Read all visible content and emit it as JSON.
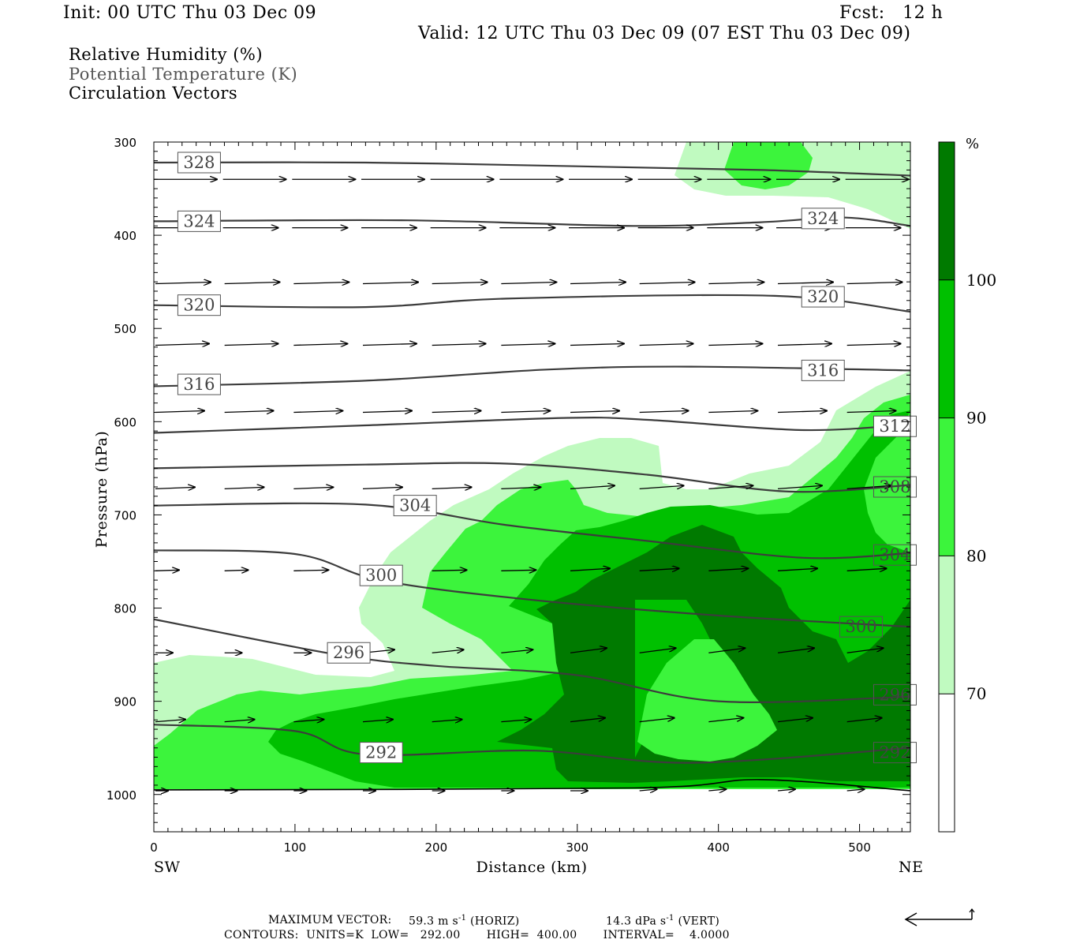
{
  "header": {
    "init": "Init: 00 UTC Thu 03 Dec 09",
    "fcst": "Fcst:   12 h",
    "valid": "Valid: 12 UTC Thu 03 Dec 09 (07 EST Thu 03 Dec 09)"
  },
  "legend": {
    "line1": "Relative Humidity (%)",
    "line2": "Potential Temperature (K)",
    "line3": "Circulation Vectors"
  },
  "footer": {
    "max_vector_label": "MAXIMUM VECTOR:",
    "max_vector_horiz": "59.3 m s",
    "horiz_tag": "(HORIZ)",
    "max_vector_vert": "14.3 dPa s",
    "vert_tag": "(VERT)",
    "contours": "CONTOURS:  UNITS=K  LOW=   292.00       HIGH=  400.00       INTERVAL=    4.0000",
    "exp": "-1"
  },
  "colors": {
    "rh_70_80": "#c0fac0",
    "rh_80_90": "#3cf43c",
    "rh_90_100": "#00c000",
    "rh_100_plus": "#007a00",
    "theta_line": "#3c3c3c"
  },
  "chart_data": {
    "type": "contour-cross-section",
    "xlabel": "Distance (km)",
    "ylabel": "Pressure (hPa)",
    "x_ticks": [
      "0",
      "100",
      "200",
      "300",
      "400",
      "500"
    ],
    "y_ticks": [
      "300",
      "400",
      "500",
      "600",
      "700",
      "800",
      "900",
      "1000"
    ],
    "xlim": [
      0,
      536
    ],
    "ylim": [
      1040,
      300
    ],
    "x_end_labels": {
      "left": "SW",
      "right": "NE"
    },
    "colorbar": {
      "unit": "%",
      "levels": [
        "70",
        "80",
        "90",
        "100"
      ],
      "colors": [
        "#ffffff",
        "#c0fac0",
        "#3cf43c",
        "#00c000",
        "#007a00"
      ]
    },
    "theta_contours": [
      {
        "value": 328,
        "label": "328",
        "points": [
          [
            0,
            322
          ],
          [
            150,
            322
          ],
          [
            300,
            326
          ],
          [
            430,
            330
          ],
          [
            536,
            336
          ]
        ],
        "labels": [
          [
            17,
            322
          ]
        ]
      },
      {
        "value": 324,
        "label": "324",
        "points": [
          [
            0,
            385
          ],
          [
            180,
            384
          ],
          [
            340,
            390
          ],
          [
            430,
            386
          ],
          [
            490,
            381
          ],
          [
            536,
            390
          ]
        ],
        "labels": [
          [
            17,
            385
          ],
          [
            459,
            382
          ]
        ]
      },
      {
        "value": 320,
        "label": "320",
        "points": [
          [
            0,
            475
          ],
          [
            150,
            477
          ],
          [
            250,
            468
          ],
          [
            440,
            465
          ],
          [
            536,
            482
          ]
        ],
        "labels": [
          [
            17,
            475
          ],
          [
            459,
            466
          ]
        ]
      },
      {
        "value": 316,
        "label": "316",
        "points": [
          [
            0,
            562
          ],
          [
            150,
            556
          ],
          [
            280,
            544
          ],
          [
            380,
            541
          ],
          [
            536,
            545
          ]
        ],
        "labels": [
          [
            17,
            560
          ],
          [
            459,
            545
          ]
        ]
      },
      {
        "value": 312,
        "label": "312",
        "points": [
          [
            0,
            612
          ],
          [
            150,
            604
          ],
          [
            290,
            596
          ],
          [
            350,
            598
          ],
          [
            460,
            609
          ],
          [
            536,
            603
          ]
        ],
        "labels": [
          [
            510,
            605
          ]
        ]
      },
      {
        "value": 308,
        "label": "308",
        "points": [
          [
            0,
            650
          ],
          [
            150,
            646
          ],
          [
            250,
            645
          ],
          [
            350,
            657
          ],
          [
            450,
            675
          ],
          [
            536,
            668
          ]
        ],
        "labels": [
          [
            510,
            670
          ]
        ]
      },
      {
        "value": 304,
        "label": "304",
        "points": [
          [
            0,
            690
          ],
          [
            150,
            689
          ],
          [
            250,
            711
          ],
          [
            350,
            728
          ],
          [
            460,
            746
          ],
          [
            536,
            741
          ]
        ],
        "labels": [
          [
            170,
            690
          ],
          [
            510,
            743
          ]
        ]
      },
      {
        "value": 300,
        "label": "300",
        "points": [
          [
            0,
            738
          ],
          [
            100,
            742
          ],
          [
            160,
            770
          ],
          [
            260,
            790
          ],
          [
            400,
            808
          ],
          [
            536,
            820
          ]
        ],
        "labels": [
          [
            146,
            765
          ],
          [
            486,
            820
          ]
        ]
      },
      {
        "value": 296,
        "label": "296",
        "points": [
          [
            0,
            812
          ],
          [
            130,
            850
          ],
          [
            200,
            862
          ],
          [
            300,
            872
          ],
          [
            400,
            900
          ],
          [
            536,
            895
          ]
        ],
        "labels": [
          [
            123,
            848
          ],
          [
            510,
            893
          ]
        ]
      },
      {
        "value": 292,
        "label": "292",
        "points": [
          [
            0,
            925
          ],
          [
            100,
            932
          ],
          [
            150,
            957
          ],
          [
            270,
            953
          ],
          [
            380,
            966
          ],
          [
            536,
            950
          ]
        ],
        "labels": [
          [
            146,
            955
          ],
          [
            510,
            955
          ]
        ]
      }
    ],
    "surface_line": {
      "points": [
        [
          0,
          995
        ],
        [
          340,
          993
        ],
        [
          430,
          984
        ],
        [
          536,
          996
        ]
      ]
    }
  }
}
